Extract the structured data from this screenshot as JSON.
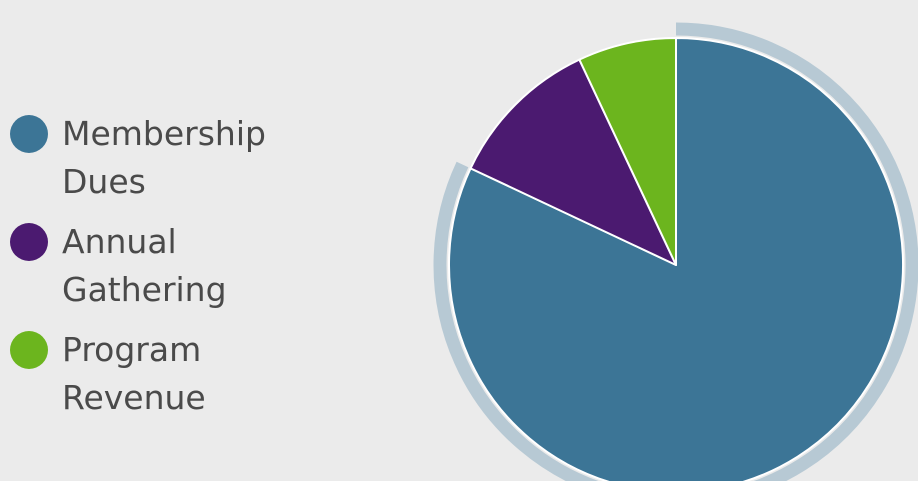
{
  "chart_data": {
    "type": "pie",
    "categories": [
      "Membership Dues",
      "Annual Gathering",
      "Program Revenue"
    ],
    "values": [
      82,
      11,
      7
    ],
    "colors": [
      "#3c7596",
      "#4b1a70",
      "#6cb51e"
    ],
    "exploded": "Membership Dues",
    "legend_position": "left",
    "title": ""
  },
  "legend": {
    "items": [
      {
        "label": "Membership Dues",
        "color": "#3c7596"
      },
      {
        "label": "Annual Gathering",
        "color": "#4b1a70"
      },
      {
        "label": "Program Revenue",
        "color": "#6cb51e"
      }
    ]
  }
}
